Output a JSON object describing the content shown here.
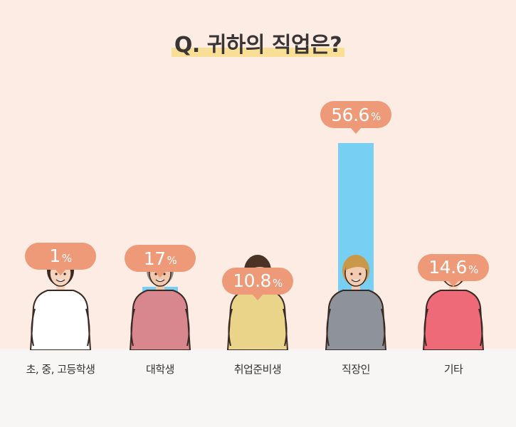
{
  "title": "Q. 귀하의 직업은?",
  "colors": {
    "background": "#fdece3",
    "floor": "#f7f6f5",
    "bar": "#78cff4",
    "bubble": "#ee9a78",
    "highlight": "#f8df95"
  },
  "chart_data": {
    "type": "bar",
    "title": "Q. 귀하의 직업은?",
    "categories": [
      "초, 중, 고등학생",
      "대학생",
      "취업준비생",
      "직장인",
      "기타"
    ],
    "values": [
      1,
      17,
      10.8,
      56.6,
      14.6
    ],
    "value_labels": [
      "1",
      "17",
      "10.8",
      "56.6",
      "14.6"
    ],
    "unit": "%",
    "xlabel": "",
    "ylabel": "",
    "grid": false,
    "legend": "none"
  }
}
